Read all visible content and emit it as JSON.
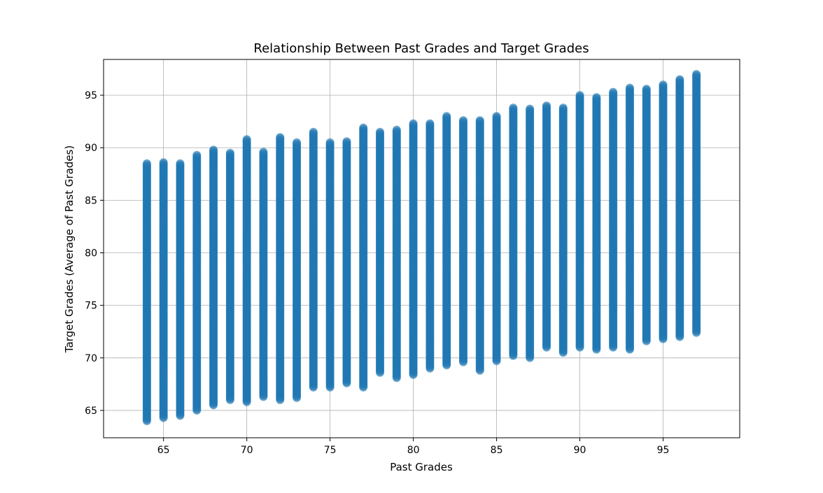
{
  "chart_data": {
    "type": "scatter",
    "title": "Relationship Between Past Grades and Target Grades",
    "xlabel": "Past Grades",
    "ylabel": "Target Grades (Average of Past Grades)",
    "xlim": [
      61.4,
      99.6
    ],
    "ylim": [
      62.4,
      98.4
    ],
    "xticks": [
      65,
      70,
      75,
      80,
      85,
      90,
      95
    ],
    "yticks": [
      65,
      70,
      75,
      80,
      85,
      90,
      95
    ],
    "grid": true,
    "marker_color": "#1f77b4",
    "marker_alpha": 0.5,
    "columns": [
      {
        "x": 64,
        "ymin": 64.0,
        "ymax": 88.5
      },
      {
        "x": 65,
        "ymin": 64.3,
        "ymax": 88.6
      },
      {
        "x": 66,
        "ymin": 64.5,
        "ymax": 88.5
      },
      {
        "x": 67,
        "ymin": 65.0,
        "ymax": 89.3
      },
      {
        "x": 68,
        "ymin": 65.5,
        "ymax": 89.8
      },
      {
        "x": 69,
        "ymin": 66.0,
        "ymax": 89.5
      },
      {
        "x": 70,
        "ymin": 65.8,
        "ymax": 90.8
      },
      {
        "x": 71,
        "ymin": 66.3,
        "ymax": 89.6
      },
      {
        "x": 72,
        "ymin": 66.0,
        "ymax": 91.0
      },
      {
        "x": 73,
        "ymin": 66.2,
        "ymax": 90.5
      },
      {
        "x": 74,
        "ymin": 67.2,
        "ymax": 91.5
      },
      {
        "x": 75,
        "ymin": 67.2,
        "ymax": 90.5
      },
      {
        "x": 76,
        "ymin": 67.6,
        "ymax": 90.6
      },
      {
        "x": 77,
        "ymin": 67.2,
        "ymax": 91.9
      },
      {
        "x": 78,
        "ymin": 68.6,
        "ymax": 91.5
      },
      {
        "x": 79,
        "ymin": 68.1,
        "ymax": 91.7
      },
      {
        "x": 80,
        "ymin": 68.4,
        "ymax": 92.3
      },
      {
        "x": 81,
        "ymin": 69.0,
        "ymax": 92.3
      },
      {
        "x": 82,
        "ymin": 69.3,
        "ymax": 93.0
      },
      {
        "x": 83,
        "ymin": 69.6,
        "ymax": 92.6
      },
      {
        "x": 84,
        "ymin": 68.8,
        "ymax": 92.6
      },
      {
        "x": 85,
        "ymin": 69.7,
        "ymax": 93.0
      },
      {
        "x": 86,
        "ymin": 70.2,
        "ymax": 93.8
      },
      {
        "x": 87,
        "ymin": 70.0,
        "ymax": 93.7
      },
      {
        "x": 88,
        "ymin": 71.0,
        "ymax": 94.0
      },
      {
        "x": 89,
        "ymin": 70.5,
        "ymax": 93.8
      },
      {
        "x": 90,
        "ymin": 71.0,
        "ymax": 95.0
      },
      {
        "x": 91,
        "ymin": 70.8,
        "ymax": 94.8
      },
      {
        "x": 92,
        "ymin": 71.0,
        "ymax": 95.3
      },
      {
        "x": 93,
        "ymin": 70.8,
        "ymax": 95.7
      },
      {
        "x": 94,
        "ymin": 71.6,
        "ymax": 95.6
      },
      {
        "x": 95,
        "ymin": 71.8,
        "ymax": 96.0
      },
      {
        "x": 96,
        "ymin": 72.0,
        "ymax": 96.5
      },
      {
        "x": 97,
        "ymin": 72.4,
        "ymax": 97.0
      }
    ]
  }
}
